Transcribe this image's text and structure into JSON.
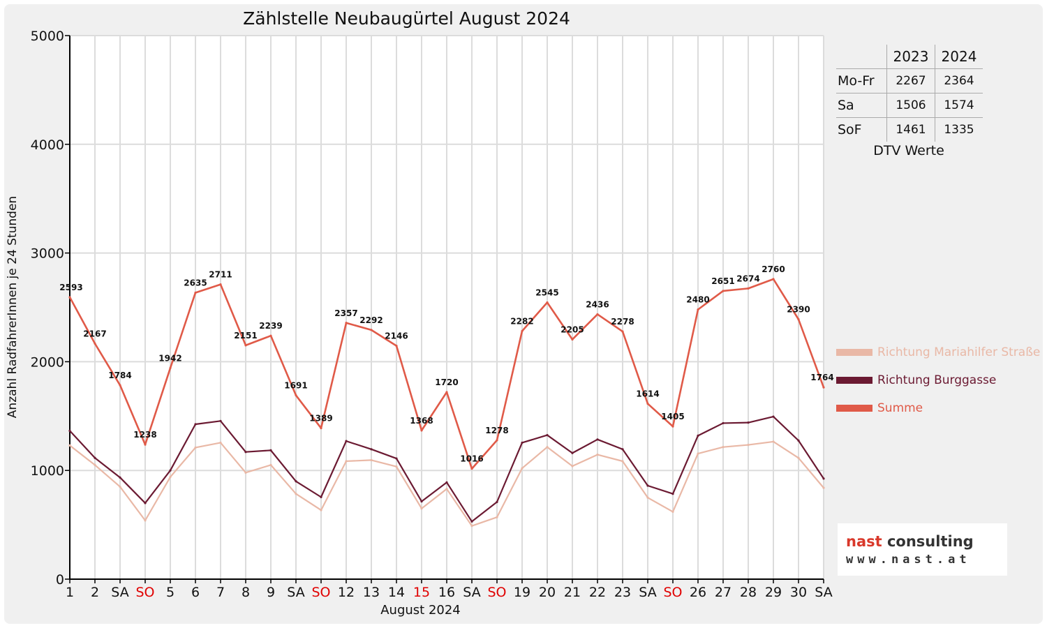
{
  "chart_data": {
    "type": "line",
    "title": "Zählstelle Neubaugürtel August 2024",
    "xlabel": "August 2024",
    "ylabel": "Anzahl RadfahrerInnen je 24 Stunden",
    "ylim": [
      0,
      5000
    ],
    "yticks": [
      "0",
      "1000",
      "2000",
      "3000",
      "4000",
      "5000"
    ],
    "grid": true,
    "legend_position": "right",
    "categories": [
      "1",
      "2",
      "SA",
      "SO",
      "5",
      "6",
      "7",
      "8",
      "9",
      "SA",
      "SO",
      "12",
      "13",
      "14",
      "15",
      "16",
      "SA",
      "SO",
      "19",
      "20",
      "21",
      "22",
      "23",
      "SA",
      "SO",
      "26",
      "27",
      "28",
      "29",
      "30",
      "SA"
    ],
    "red_categories": [
      3,
      10,
      14,
      17,
      24
    ],
    "series": [
      {
        "name": "Richtung Mariahilfer Straße",
        "color": "#e9b8a6",
        "values": [
          1230,
          1050,
          850,
          540,
          940,
          1210,
          1255,
          980,
          1050,
          785,
          635,
          1085,
          1095,
          1035,
          650,
          830,
          490,
          570,
          1020,
          1215,
          1040,
          1145,
          1085,
          750,
          620,
          1155,
          1215,
          1235,
          1265,
          1115,
          840
        ]
      },
      {
        "name": "Richtung Burggasse",
        "color": "#6b1a32",
        "values": [
          1365,
          1115,
          935,
          700,
          1000,
          1425,
          1455,
          1170,
          1185,
          900,
          755,
          1270,
          1195,
          1110,
          715,
          890,
          530,
          710,
          1255,
          1325,
          1160,
          1285,
          1195,
          860,
          785,
          1320,
          1435,
          1440,
          1495,
          1275,
          925
        ]
      },
      {
        "name": "Summe",
        "color": "#e05a48",
        "label_values": true,
        "values": [
          2593,
          2167,
          1784,
          1238,
          1942,
          2635,
          2711,
          2151,
          2239,
          1691,
          1389,
          2357,
          2292,
          2146,
          1368,
          1720,
          1016,
          1278,
          2282,
          2545,
          2205,
          2436,
          2278,
          1614,
          1405,
          2480,
          2651,
          2674,
          2760,
          2390,
          1764
        ]
      }
    ]
  },
  "dtv_table": {
    "headers": [
      "",
      "2023",
      "2024"
    ],
    "rows": [
      {
        "label": "Mo-Fr",
        "v2023": "2267",
        "v2024": "2364"
      },
      {
        "label": "Sa",
        "v2023": "1506",
        "v2024": "1574"
      },
      {
        "label": "SoF",
        "v2023": "1461",
        "v2024": "1335"
      }
    ],
    "caption": "DTV Werte"
  },
  "logo": {
    "brand_a": "nast",
    "brand_b": " consulting",
    "url": "www.nast.at"
  },
  "colors": {
    "red_text": "#e00000",
    "frame_bg": "#f0f0f0"
  }
}
